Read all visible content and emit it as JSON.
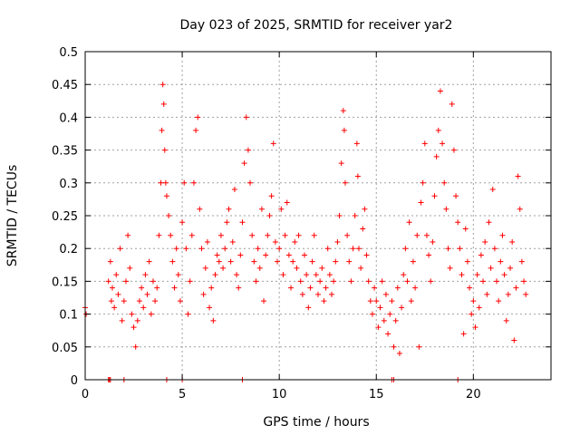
{
  "chart_data": {
    "type": "scatter",
    "title": "Day 023 of 2025, SRMTID for receiver yar2",
    "xlabel": "GPS time / hours",
    "ylabel": "SRMTID / TECUs",
    "xlim": [
      0,
      24
    ],
    "ylim": [
      0,
      0.5
    ],
    "xticks": [
      0,
      5,
      10,
      15,
      20
    ],
    "yticks": [
      0,
      0.05,
      0.1,
      0.15,
      0.2,
      0.25,
      0.3,
      0.35,
      0.4,
      0.45,
      0.5
    ],
    "xtick_labels": [
      "0",
      "5",
      "10",
      "15",
      "20"
    ],
    "ytick_labels": [
      "0",
      "0.05",
      "0.1",
      "0.15",
      "0.2",
      "0.25",
      "0.3",
      "0.35",
      "0.4",
      "0.45",
      "0.5"
    ],
    "grid": true,
    "marker": "+",
    "color": "#ff0000",
    "series": [
      {
        "name": "SRMTID",
        "points": [
          [
            0.0,
            0.11
          ],
          [
            0.05,
            0.1
          ],
          [
            1.2,
            0.0
          ],
          [
            1.25,
            0.0
          ],
          [
            1.3,
            0.0
          ],
          [
            2.0,
            0.0
          ],
          [
            4.2,
            0.0
          ],
          [
            5.0,
            0.0
          ],
          [
            8.1,
            0.0
          ],
          [
            15.8,
            0.0
          ],
          [
            15.9,
            0.0
          ],
          [
            19.2,
            0.0
          ],
          [
            1.2,
            0.15
          ],
          [
            1.3,
            0.18
          ],
          [
            1.35,
            0.12
          ],
          [
            1.4,
            0.14
          ],
          [
            1.5,
            0.11
          ],
          [
            1.6,
            0.16
          ],
          [
            1.7,
            0.13
          ],
          [
            1.8,
            0.2
          ],
          [
            1.9,
            0.09
          ],
          [
            2.0,
            0.12
          ],
          [
            2.1,
            0.15
          ],
          [
            2.2,
            0.22
          ],
          [
            2.3,
            0.17
          ],
          [
            2.4,
            0.1
          ],
          [
            2.5,
            0.08
          ],
          [
            2.6,
            0.05
          ],
          [
            2.7,
            0.09
          ],
          [
            2.8,
            0.12
          ],
          [
            2.9,
            0.14
          ],
          [
            3.0,
            0.11
          ],
          [
            3.1,
            0.16
          ],
          [
            3.2,
            0.13
          ],
          [
            3.3,
            0.18
          ],
          [
            3.4,
            0.1
          ],
          [
            3.5,
            0.15
          ],
          [
            3.6,
            0.12
          ],
          [
            3.7,
            0.14
          ],
          [
            3.8,
            0.22
          ],
          [
            3.9,
            0.3
          ],
          [
            3.95,
            0.38
          ],
          [
            4.0,
            0.45
          ],
          [
            4.05,
            0.42
          ],
          [
            4.1,
            0.35
          ],
          [
            4.15,
            0.3
          ],
          [
            4.2,
            0.28
          ],
          [
            4.3,
            0.25
          ],
          [
            4.4,
            0.22
          ],
          [
            4.5,
            0.18
          ],
          [
            4.6,
            0.14
          ],
          [
            4.7,
            0.2
          ],
          [
            4.8,
            0.16
          ],
          [
            4.9,
            0.12
          ],
          [
            5.0,
            0.24
          ],
          [
            5.1,
            0.3
          ],
          [
            5.2,
            0.2
          ],
          [
            5.3,
            0.1
          ],
          [
            5.4,
            0.15
          ],
          [
            5.5,
            0.22
          ],
          [
            5.6,
            0.3
          ],
          [
            5.7,
            0.38
          ],
          [
            5.8,
            0.4
          ],
          [
            5.9,
            0.26
          ],
          [
            6.0,
            0.2
          ],
          [
            6.1,
            0.13
          ],
          [
            6.2,
            0.17
          ],
          [
            6.3,
            0.21
          ],
          [
            6.4,
            0.11
          ],
          [
            6.5,
            0.14
          ],
          [
            6.6,
            0.09
          ],
          [
            6.7,
            0.16
          ],
          [
            6.8,
            0.19
          ],
          [
            6.9,
            0.18
          ],
          [
            7.0,
            0.22
          ],
          [
            7.1,
            0.17
          ],
          [
            7.2,
            0.2
          ],
          [
            7.3,
            0.24
          ],
          [
            7.4,
            0.26
          ],
          [
            7.5,
            0.18
          ],
          [
            7.6,
            0.21
          ],
          [
            7.7,
            0.29
          ],
          [
            7.8,
            0.16
          ],
          [
            7.9,
            0.14
          ],
          [
            8.0,
            0.19
          ],
          [
            8.1,
            0.24
          ],
          [
            8.2,
            0.33
          ],
          [
            8.3,
            0.4
          ],
          [
            8.4,
            0.35
          ],
          [
            8.5,
            0.3
          ],
          [
            8.6,
            0.22
          ],
          [
            8.7,
            0.18
          ],
          [
            8.8,
            0.15
          ],
          [
            8.9,
            0.2
          ],
          [
            9.0,
            0.17
          ],
          [
            9.1,
            0.26
          ],
          [
            9.2,
            0.12
          ],
          [
            9.3,
            0.19
          ],
          [
            9.4,
            0.22
          ],
          [
            9.5,
            0.25
          ],
          [
            9.6,
            0.28
          ],
          [
            9.7,
            0.36
          ],
          [
            9.8,
            0.21
          ],
          [
            9.9,
            0.18
          ],
          [
            10.0,
            0.2
          ],
          [
            10.1,
            0.26
          ],
          [
            10.2,
            0.16
          ],
          [
            10.3,
            0.22
          ],
          [
            10.4,
            0.27
          ],
          [
            10.5,
            0.19
          ],
          [
            10.6,
            0.14
          ],
          [
            10.7,
            0.18
          ],
          [
            10.8,
            0.21
          ],
          [
            10.9,
            0.17
          ],
          [
            11.0,
            0.22
          ],
          [
            11.1,
            0.15
          ],
          [
            11.2,
            0.13
          ],
          [
            11.3,
            0.19
          ],
          [
            11.4,
            0.16
          ],
          [
            11.5,
            0.11
          ],
          [
            11.6,
            0.14
          ],
          [
            11.7,
            0.18
          ],
          [
            11.8,
            0.22
          ],
          [
            11.9,
            0.16
          ],
          [
            12.0,
            0.13
          ],
          [
            12.1,
            0.15
          ],
          [
            12.2,
            0.17
          ],
          [
            12.3,
            0.12
          ],
          [
            12.4,
            0.14
          ],
          [
            12.5,
            0.2
          ],
          [
            12.6,
            0.16
          ],
          [
            12.7,
            0.13
          ],
          [
            12.8,
            0.15
          ],
          [
            12.9,
            0.18
          ],
          [
            13.0,
            0.21
          ],
          [
            13.1,
            0.25
          ],
          [
            13.2,
            0.33
          ],
          [
            13.3,
            0.41
          ],
          [
            13.35,
            0.38
          ],
          [
            13.4,
            0.3
          ],
          [
            13.5,
            0.22
          ],
          [
            13.6,
            0.18
          ],
          [
            13.7,
            0.15
          ],
          [
            13.8,
            0.2
          ],
          [
            13.9,
            0.25
          ],
          [
            14.0,
            0.36
          ],
          [
            14.05,
            0.31
          ],
          [
            14.1,
            0.2
          ],
          [
            14.2,
            0.17
          ],
          [
            14.3,
            0.23
          ],
          [
            14.4,
            0.26
          ],
          [
            14.5,
            0.19
          ],
          [
            14.6,
            0.15
          ],
          [
            14.7,
            0.12
          ],
          [
            14.8,
            0.1
          ],
          [
            14.9,
            0.14
          ],
          [
            15.0,
            0.12
          ],
          [
            15.1,
            0.08
          ],
          [
            15.2,
            0.11
          ],
          [
            15.3,
            0.15
          ],
          [
            15.4,
            0.09
          ],
          [
            15.5,
            0.13
          ],
          [
            15.6,
            0.07
          ],
          [
            15.7,
            0.1
          ],
          [
            15.8,
            0.12
          ],
          [
            15.9,
            0.05
          ],
          [
            16.0,
            0.09
          ],
          [
            16.1,
            0.14
          ],
          [
            16.2,
            0.04
          ],
          [
            16.3,
            0.11
          ],
          [
            16.4,
            0.16
          ],
          [
            16.5,
            0.2
          ],
          [
            16.6,
            0.15
          ],
          [
            16.7,
            0.24
          ],
          [
            16.8,
            0.12
          ],
          [
            16.9,
            0.18
          ],
          [
            17.0,
            0.14
          ],
          [
            17.1,
            0.22
          ],
          [
            17.2,
            0.05
          ],
          [
            17.3,
            0.27
          ],
          [
            17.4,
            0.3
          ],
          [
            17.5,
            0.36
          ],
          [
            17.6,
            0.22
          ],
          [
            17.7,
            0.19
          ],
          [
            17.8,
            0.15
          ],
          [
            17.9,
            0.21
          ],
          [
            18.0,
            0.28
          ],
          [
            18.1,
            0.34
          ],
          [
            18.2,
            0.38
          ],
          [
            18.3,
            0.44
          ],
          [
            18.4,
            0.36
          ],
          [
            18.5,
            0.3
          ],
          [
            18.6,
            0.26
          ],
          [
            18.7,
            0.2
          ],
          [
            18.8,
            0.17
          ],
          [
            18.9,
            0.42
          ],
          [
            19.0,
            0.35
          ],
          [
            19.1,
            0.28
          ],
          [
            19.2,
            0.24
          ],
          [
            19.3,
            0.2
          ],
          [
            19.4,
            0.16
          ],
          [
            19.5,
            0.07
          ],
          [
            19.6,
            0.23
          ],
          [
            19.7,
            0.18
          ],
          [
            19.8,
            0.14
          ],
          [
            19.9,
            0.1
          ],
          [
            20.0,
            0.12
          ],
          [
            20.1,
            0.08
          ],
          [
            20.2,
            0.16
          ],
          [
            20.3,
            0.11
          ],
          [
            20.4,
            0.19
          ],
          [
            20.5,
            0.15
          ],
          [
            20.6,
            0.21
          ],
          [
            20.7,
            0.13
          ],
          [
            20.8,
            0.24
          ],
          [
            20.9,
            0.17
          ],
          [
            21.0,
            0.29
          ],
          [
            21.1,
            0.2
          ],
          [
            21.2,
            0.15
          ],
          [
            21.3,
            0.12
          ],
          [
            21.4,
            0.18
          ],
          [
            21.5,
            0.22
          ],
          [
            21.6,
            0.16
          ],
          [
            21.7,
            0.09
          ],
          [
            21.8,
            0.13
          ],
          [
            21.9,
            0.17
          ],
          [
            22.0,
            0.21
          ],
          [
            22.1,
            0.06
          ],
          [
            22.2,
            0.14
          ],
          [
            22.3,
            0.31
          ],
          [
            22.4,
            0.26
          ],
          [
            22.5,
            0.18
          ],
          [
            22.6,
            0.15
          ],
          [
            22.7,
            0.13
          ]
        ]
      }
    ]
  }
}
